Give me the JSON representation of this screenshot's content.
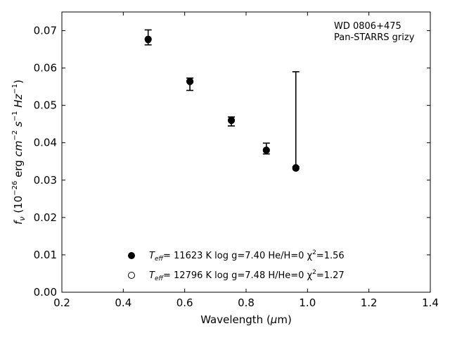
{
  "chart_data": {
    "type": "scatter",
    "xlabel": "Wavelength (μm)",
    "ylabel": "fν (10⁻²⁶ erg cm⁻² s⁻¹ Hz⁻¹)",
    "xlim": [
      0.2,
      1.4
    ],
    "ylim": [
      0.0,
      0.075
    ],
    "x_ticks": [
      0.2,
      0.4,
      0.6,
      0.8,
      1.0,
      1.2,
      1.4
    ],
    "x_tick_labels": [
      "0.2",
      "0.4",
      "0.6",
      "0.8",
      "1.0",
      "1.2",
      "1.4"
    ],
    "y_ticks": [
      0.0,
      0.01,
      0.02,
      0.03,
      0.04,
      0.05,
      0.06,
      0.07
    ],
    "y_tick_labels": [
      "0.00",
      "0.01",
      "0.02",
      "0.03",
      "0.04",
      "0.05",
      "0.06",
      "0.07"
    ],
    "grid": false,
    "annotation": [
      "WD 0806+475",
      "Pan-STARRS grizy"
    ],
    "observed": {
      "x": [
        0.481,
        0.617,
        0.752,
        0.866,
        0.962
      ],
      "y": [
        0.0678,
        0.0562,
        0.0457,
        0.0382,
        0.0336
      ],
      "yerr_low": [
        0.0016,
        0.0022,
        0.0012,
        0.0012,
        0.0
      ],
      "yerr_high": [
        0.0024,
        0.0011,
        0.0012,
        0.0017,
        0.0254
      ]
    },
    "series": [
      {
        "marker": "filled",
        "label": "T_eff= 11623 K  log g=7.40  He/H=0  χ²=1.56",
        "x": [
          0.481,
          0.617,
          0.752,
          0.866,
          0.962
        ],
        "y": [
          0.0677,
          0.0564,
          0.046,
          0.038,
          0.0332
        ]
      },
      {
        "marker": "open",
        "label": "T_eff= 12796 K  log g=7.48  H/He=0  χ²=1.27",
        "x": [
          0.481,
          0.617,
          0.752,
          0.866,
          0.962
        ],
        "y": [
          0.0675,
          0.0563,
          0.0459,
          0.0381,
          0.0334
        ]
      }
    ],
    "legend": {
      "placement": "lower-center",
      "entries": [
        {
          "marker": "filled",
          "teff_sym": "T",
          "teff_sub": "eff",
          "text": "= 11623 K  log g=7.40  He/H=0  χ",
          "chi_sup": "2",
          "chi_val": "=1.56"
        },
        {
          "marker": "open",
          "teff_sym": "T",
          "teff_sub": "eff",
          "text": "= 12796 K  log g=7.48  H/He=0  χ",
          "chi_sup": "2",
          "chi_val": "=1.27"
        }
      ]
    }
  }
}
